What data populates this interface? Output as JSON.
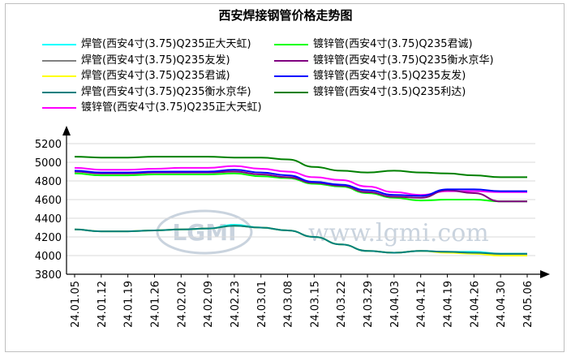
{
  "chart_data": {
    "type": "line",
    "title": "西安焊接钢管价格走势图",
    "xlabel": "",
    "ylabel": "",
    "ylim": [
      3800,
      5200
    ],
    "yticks": [
      3800,
      4000,
      4200,
      4400,
      4600,
      4800,
      5000,
      5200
    ],
    "grid": true,
    "x": [
      "24.01.05",
      "24.01.12",
      "24.01.19",
      "24.01.26",
      "24.02.02",
      "24.02.09",
      "24.02.23",
      "24.03.01",
      "24.03.08",
      "24.03.15",
      "24.03.22",
      "24.03.29",
      "24.04.03",
      "24.04.12",
      "24.04.19",
      "24.04.26",
      "24.04.30",
      "24.05.06"
    ],
    "series": [
      {
        "name": "焊管(西安4寸(3.75)Q235正大天虹)",
        "color": "#00ffff",
        "values": [
          4280,
          4260,
          4260,
          4270,
          4280,
          4290,
          4330,
          4300,
          4270,
          4200,
          4120,
          4050,
          4030,
          4050,
          4040,
          4040,
          4020,
          4020
        ]
      },
      {
        "name": "焊管(西安4寸(3.75)Q235友发)",
        "color": "#808080",
        "values": [
          4280,
          4260,
          4260,
          4270,
          4280,
          4290,
          4320,
          4300,
          4270,
          4200,
          4120,
          4050,
          4030,
          4050,
          4040,
          4030,
          4010,
          4010
        ]
      },
      {
        "name": "焊管(西安4寸(3.75)Q235君诚)",
        "color": "#ffff00",
        "values": [
          4280,
          4260,
          4260,
          4270,
          4280,
          4290,
          4320,
          4300,
          4270,
          4200,
          4120,
          4050,
          4030,
          4050,
          4030,
          4020,
          4000,
          4000
        ]
      },
      {
        "name": "焊管(西安4寸(3.75)Q235衡水京华)",
        "color": "#008080",
        "values": [
          4280,
          4260,
          4260,
          4270,
          4280,
          4290,
          4320,
          4300,
          4270,
          4200,
          4120,
          4050,
          4030,
          4050,
          4040,
          4030,
          4020,
          4020
        ]
      },
      {
        "name": "镀锌管(西安4寸(3.75)Q235正大天虹)",
        "color": "#ff00ff",
        "values": [
          4940,
          4920,
          4920,
          4930,
          4940,
          4940,
          4960,
          4930,
          4900,
          4840,
          4810,
          4740,
          4680,
          4650,
          4690,
          4690,
          4680,
          4680
        ]
      },
      {
        "name": "镀锌管(西安4寸(3.75)Q235君诚)",
        "color": "#00ff00",
        "values": [
          4880,
          4860,
          4860,
          4870,
          4870,
          4870,
          4880,
          4850,
          4830,
          4770,
          4740,
          4670,
          4620,
          4590,
          4600,
          4600,
          4580,
          4580
        ]
      },
      {
        "name": "镀锌管(西安4寸(3.75)Q235衡水京华)",
        "color": "#800080",
        "values": [
          4900,
          4880,
          4880,
          4890,
          4890,
          4890,
          4900,
          4870,
          4840,
          4780,
          4750,
          4680,
          4630,
          4620,
          4700,
          4670,
          4580,
          4580
        ]
      },
      {
        "name": "镀锌管(西安4寸(3.5)Q235友发)",
        "color": "#0000ff",
        "values": [
          4910,
          4890,
          4890,
          4900,
          4900,
          4900,
          4920,
          4890,
          4860,
          4790,
          4760,
          4700,
          4650,
          4640,
          4710,
          4710,
          4690,
          4690
        ]
      },
      {
        "name": "镀锌管(西安4寸(3.5)Q235利达)",
        "color": "#008000",
        "values": [
          5060,
          5050,
          5050,
          5060,
          5060,
          5060,
          5050,
          5050,
          5030,
          4950,
          4910,
          4890,
          4910,
          4890,
          4880,
          4860,
          4840,
          4840
        ]
      }
    ]
  },
  "watermark": {
    "logo": "LGMI",
    "text": "www.lgmi.com"
  }
}
